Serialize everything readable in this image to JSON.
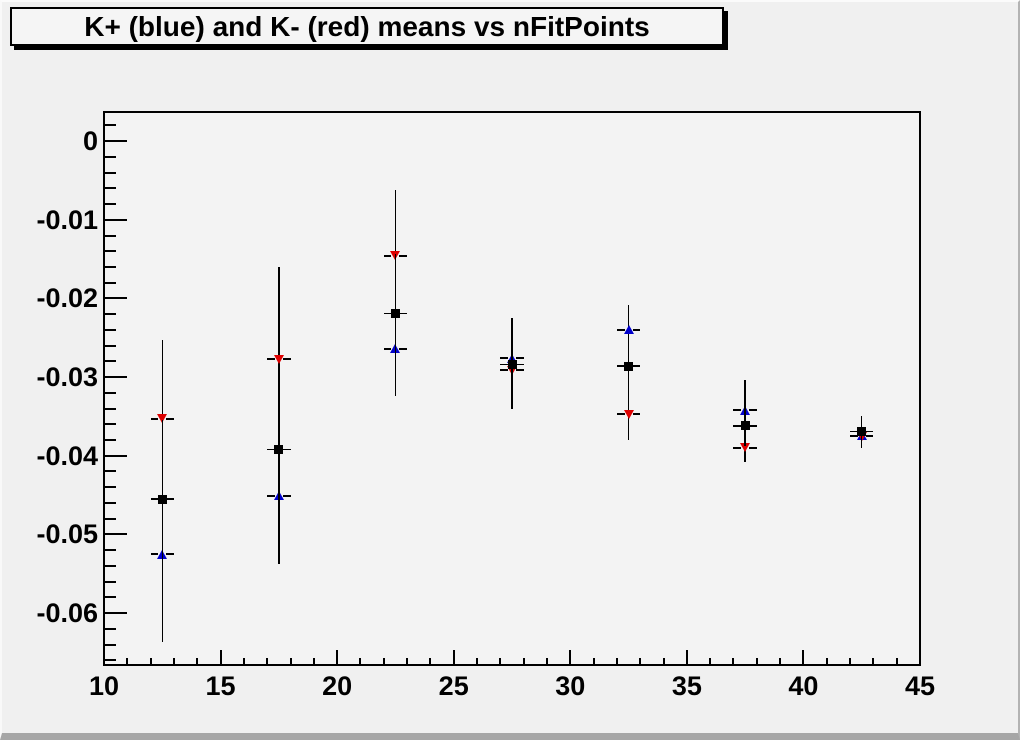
{
  "window": {
    "canvas_bg": "#f0f0f0",
    "frame_bg": "#f3f3f3",
    "title_box_bg": "#f5f5f5",
    "axis_color": "#000000"
  },
  "chart_data": {
    "type": "scatter",
    "title": "K+ (blue) and K- (red) means vs nFitPoints",
    "xlabel": "",
    "ylabel": "",
    "xlim": [
      10,
      45
    ],
    "ylim": [
      -0.0666,
      0.0037
    ],
    "grid": false,
    "legend": "none",
    "x_major_ticks": [
      10,
      15,
      20,
      25,
      30,
      35,
      40,
      45
    ],
    "x_major_labels": [
      "10",
      "15",
      "20",
      "25",
      "30",
      "35",
      "40",
      "45"
    ],
    "x_minor_step": 1,
    "y_major_ticks": [
      0,
      -0.01,
      -0.02,
      -0.03,
      -0.04,
      -0.05,
      -0.06
    ],
    "y_major_labels": [
      "0",
      "-0.01",
      "-0.02",
      "-0.03",
      "-0.04",
      "-0.05",
      "-0.06"
    ],
    "y_minor_step": 0.002,
    "x": [
      12.5,
      17.5,
      22.5,
      27.5,
      32.5,
      37.5,
      42.5
    ],
    "xerr": 0.5,
    "series": [
      {
        "name": "K+ (blue)",
        "marker": "triangle-up",
        "color": "#0000cc",
        "values": [
          -0.0525,
          -0.0451,
          -0.0264,
          -0.0276,
          -0.024,
          -0.0342,
          -0.0374
        ],
        "yerr": [
          0.0112,
          0.0087,
          0.006,
          0.0051,
          0.0032,
          0.0038,
          0.0015
        ]
      },
      {
        "name": "K- (red)",
        "marker": "triangle-down",
        "color": "#dd0000",
        "values": [
          -0.0353,
          -0.0277,
          -0.0146,
          -0.0291,
          -0.0347,
          -0.039,
          -0.0375
        ],
        "yerr": [
          0.01,
          0.0117,
          0.0084,
          0.005,
          0.0033,
          0.0018,
          0.0015
        ]
      },
      {
        "name": "unlabeled (black)",
        "marker": "square",
        "color": "#000000",
        "values": [
          -0.0455,
          -0.0392,
          -0.0219,
          -0.0284,
          -0.0286,
          -0.0362,
          -0.0369
        ],
        "yerr": [
          0.01,
          0.0105,
          0.0075,
          0.005,
          0.0035,
          0.0025,
          0.0019
        ]
      }
    ]
  }
}
